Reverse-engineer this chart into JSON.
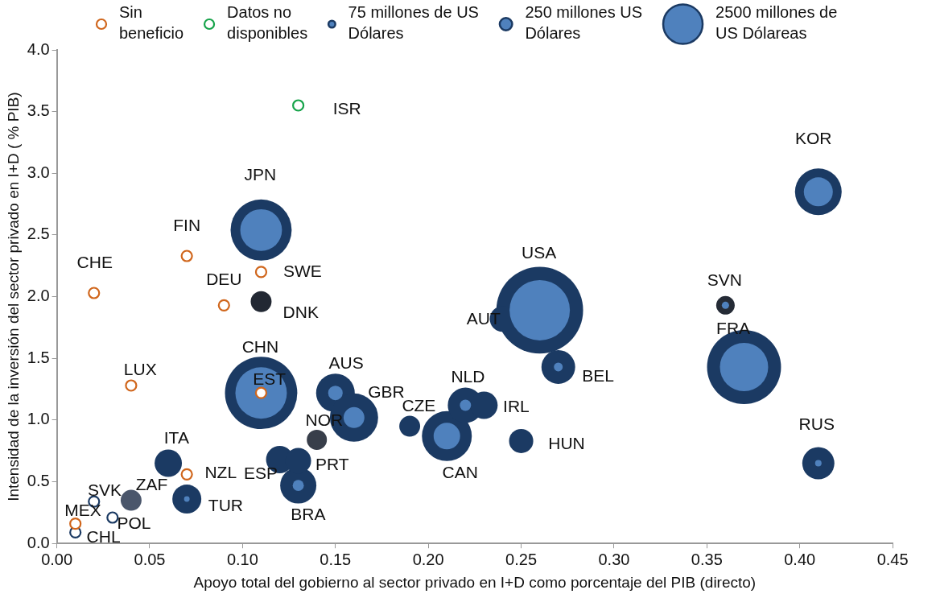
{
  "chart_data": {
    "type": "bubble",
    "xlabel": "Apoyo total del gobierno al sector privado en I+D como porcentaje del PIB (directo)",
    "ylabel": "Intensidad de la inversión del sector privado en I+D ( % PIB)",
    "xlim": [
      0,
      0.45
    ],
    "xticks": [
      {
        "value": 0,
        "label": "0.00"
      },
      {
        "value": 0.05,
        "label": "0.05"
      },
      {
        "value": 0.1,
        "label": "0.10"
      },
      {
        "value": 0.15,
        "label": "0.15"
      },
      {
        "value": 0.2,
        "label": "0.20"
      },
      {
        "value": 0.25,
        "label": "0.25"
      },
      {
        "value": 0.3,
        "label": "0.30"
      },
      {
        "value": 0.35,
        "label": "0.35"
      },
      {
        "value": 0.4,
        "label": "0.40"
      },
      {
        "value": 0.45,
        "label": "0.45"
      }
    ],
    "ylim": [
      0,
      4
    ],
    "yticks": [
      {
        "value": 0,
        "label": "0.0"
      },
      {
        "value": 0.5,
        "label": "0.5"
      },
      {
        "value": 1,
        "label": "1.0"
      },
      {
        "value": 1.5,
        "label": "1.5"
      },
      {
        "value": 2,
        "label": "2.0"
      },
      {
        "value": 2.5,
        "label": "2.5"
      },
      {
        "value": 3,
        "label": "3.0"
      },
      {
        "value": 3.5,
        "label": "3.5"
      },
      {
        "value": 4,
        "label": "4.0"
      }
    ],
    "grid": false,
    "legend": "top",
    "marker": "circle",
    "size_legend": [
      {
        "value": 75,
        "label": "75 millones de US Dólares"
      },
      {
        "value": 250,
        "label": "250 millones US Dólares"
      },
      {
        "value": 2500,
        "label": "2500 millones de US Dólareas"
      }
    ],
    "series": [
      {
        "color": "#1b3a63",
        "x": [
          0.26,
          0.37,
          0.11,
          0.11,
          0.41,
          0.24,
          0.27,
          0.15,
          0.16,
          0.21,
          0.22,
          0.23,
          0.19,
          0.25,
          0.41,
          0.36,
          0.11,
          0.14,
          0.04,
          0.06,
          0.07,
          0.13,
          0.12,
          0.13
        ],
        "values": [
          1.89,
          1.43,
          1.22,
          2.54,
          2.85,
          1.82,
          1.43,
          1.22,
          1.02,
          0.87,
          1.12,
          1.12,
          0.95,
          0.83,
          0.65,
          1.93,
          1.96,
          0.84,
          0.35,
          0.65,
          0.36,
          0.47,
          0.68,
          0.67
        ],
        "sizes": [
          12100,
          8800,
          8400,
          6000,
          3500,
          1060,
          1830,
          2400,
          3740,
          4000,
          2000,
          1200,
          700,
          940,
          1660,
          550,
          700,
          650,
          700,
          1200,
          1350,
          2100,
          1200,
          1060
        ],
        "colors": [
          "#1b3a63",
          "#1b3a63",
          "#1b3a63",
          "#1b3a63",
          "#1b3a63",
          "#1b3a63",
          "#1b3a63",
          "#1b3a63",
          "#1b3a63",
          "#1b3a63",
          "#1b3a63",
          "#1b3a63",
          "#1b3a63",
          "#1b3a63",
          "#1b3a63",
          "#252b36",
          "#222833",
          "#383e4a",
          "#4a566b",
          "#1b3a63",
          "#1b3a63",
          "#1b3a63",
          "#1b3a63",
          "#1b3a63"
        ]
      },
      {
        "color": "#4f81bd",
        "x": [
          0.26,
          0.37,
          0.11,
          0.11,
          0.41,
          0.27,
          0.15,
          0.16,
          0.21,
          0.22,
          0.41,
          0.36,
          0.07,
          0.13
        ],
        "values": [
          1.89,
          1.43,
          1.22,
          2.54,
          2.85,
          1.43,
          1.22,
          1.02,
          0.87,
          1.12,
          0.65,
          1.93,
          0.36,
          0.47
        ],
        "sizes": [
          5850,
          3750,
          4260,
          2800,
          1350,
          125,
          340,
          700,
          1130,
          200,
          67,
          85,
          50,
          200
        ]
      },
      {
        "type": "scatter",
        "color": "#1b3a63",
        "x": [
          0.02,
          0.03,
          0.01
        ],
        "values": [
          0.34,
          0.21,
          0.09
        ]
      },
      {
        "type": "scatter",
        "name": "Sin beneficio",
        "color": "#d0661c",
        "x": [
          0.02,
          0.07,
          0.11,
          0.09,
          0.04,
          0.11,
          0.07,
          0.01
        ],
        "values": [
          2.03,
          2.33,
          2.2,
          1.93,
          1.28,
          1.22,
          0.56,
          0.16
        ]
      },
      {
        "type": "scatter",
        "name": "Datos no disponibles",
        "color": "#16a34a",
        "x": [
          0.13
        ],
        "values": [
          3.55
        ]
      }
    ],
    "annotations": [
      {
        "text": "ISR",
        "x": 0.13,
        "y": 3.55
      },
      {
        "text": "CHE",
        "x": 0.02,
        "y": 2.03
      },
      {
        "text": "FIN",
        "x": 0.07,
        "y": 2.33
      },
      {
        "text": "SWE",
        "x": 0.11,
        "y": 2.2
      },
      {
        "text": "DEU",
        "x": 0.09,
        "y": 1.93
      },
      {
        "text": "LUX",
        "x": 0.04,
        "y": 1.28
      },
      {
        "text": "EST",
        "x": 0.11,
        "y": 1.22
      },
      {
        "text": "NZL",
        "x": 0.07,
        "y": 0.56
      },
      {
        "text": "MEX",
        "x": 0.01,
        "y": 0.16
      },
      {
        "text": "CHL",
        "x": 0.01,
        "y": 0.09
      },
      {
        "text": "POL",
        "x": 0.03,
        "y": 0.21
      },
      {
        "text": "SVK",
        "x": 0.02,
        "y": 0.34
      },
      {
        "text": "ZAF",
        "x": 0.04,
        "y": 0.35
      },
      {
        "text": "ITA",
        "x": 0.06,
        "y": 0.65
      },
      {
        "text": "TUR",
        "x": 0.07,
        "y": 0.36
      },
      {
        "text": "ESP",
        "x": 0.12,
        "y": 0.68
      },
      {
        "text": "PRT",
        "x": 0.13,
        "y": 0.67
      },
      {
        "text": "BRA",
        "x": 0.13,
        "y": 0.47
      },
      {
        "text": "NOR",
        "x": 0.14,
        "y": 0.84
      },
      {
        "text": "CHN",
        "x": 0.11,
        "y": 1.22
      },
      {
        "text": "AUS",
        "x": 0.15,
        "y": 1.22
      },
      {
        "text": "GBR",
        "x": 0.16,
        "y": 1.02
      },
      {
        "text": "NLD",
        "x": 0.22,
        "y": 1.12
      },
      {
        "text": "IRL",
        "x": 0.23,
        "y": 1.12
      },
      {
        "text": "CZE",
        "x": 0.19,
        "y": 0.95
      },
      {
        "text": "CAN",
        "x": 0.21,
        "y": 0.87
      },
      {
        "text": "HUN",
        "x": 0.25,
        "y": 0.83
      },
      {
        "text": "JPN",
        "x": 0.11,
        "y": 2.54
      },
      {
        "text": "DNK",
        "x": 0.11,
        "y": 1.96
      },
      {
        "text": "AUT",
        "x": 0.24,
        "y": 1.82
      },
      {
        "text": "USA",
        "x": 0.26,
        "y": 1.89
      },
      {
        "text": "BEL",
        "x": 0.27,
        "y": 1.43
      },
      {
        "text": "KOR",
        "x": 0.41,
        "y": 2.85
      },
      {
        "text": "SVN",
        "x": 0.36,
        "y": 1.93
      },
      {
        "text": "FRA",
        "x": 0.37,
        "y": 1.43
      },
      {
        "text": "RUS",
        "x": 0.41,
        "y": 0.65
      }
    ]
  }
}
